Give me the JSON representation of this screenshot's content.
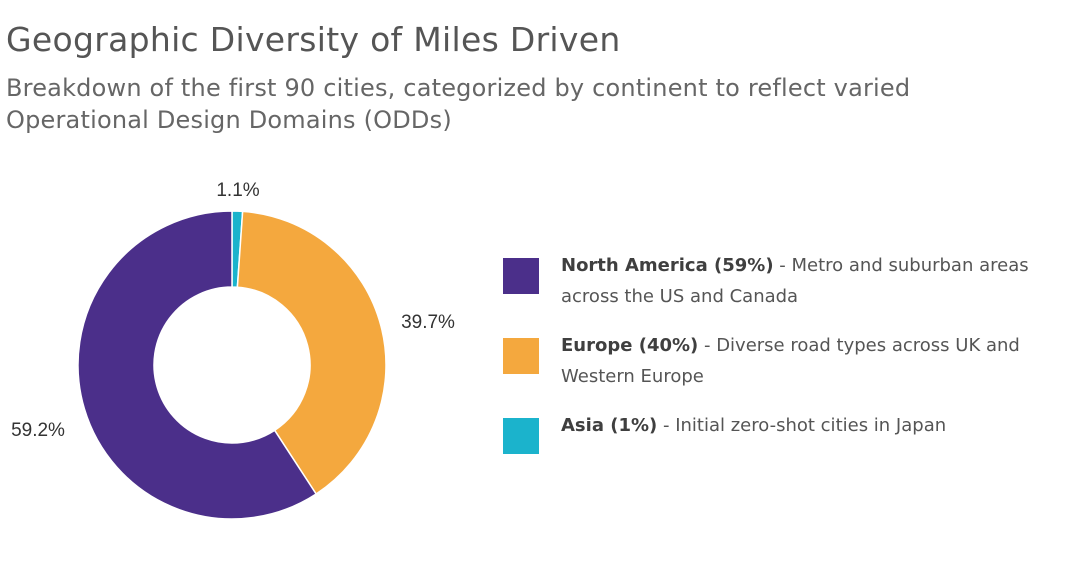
{
  "header": {
    "title": "Geographic Diversity of Miles Driven",
    "subtitle": "Breakdown of the first 90 cities, categorized by continent to reflect varied Operational Design Domains (ODDs)"
  },
  "chart_data": {
    "type": "pie",
    "variant": "donut",
    "title": "Geographic Diversity of Miles Driven",
    "subtitle": "Breakdown of the first 90 cities, categorized by continent to reflect varied Operational Design Domains (ODDs)",
    "start": "top, clockwise",
    "slices": [
      {
        "name": "Asia",
        "value": 1.1,
        "label": "1.1%",
        "color": "#1bb3cc"
      },
      {
        "name": "Europe",
        "value": 39.7,
        "label": "39.7%",
        "color": "#f4a83e"
      },
      {
        "name": "North America",
        "value": 59.2,
        "label": "59.2%",
        "color": "#4b2f8a"
      }
    ],
    "legend_position": "right",
    "legend": [
      {
        "label": "North America (59%)",
        "description": " - Metro and suburban areas across the US and Canada",
        "color": "#4b2f8a"
      },
      {
        "label": "Europe (40%)",
        "description": " - Diverse road types across UK and Western Europe",
        "color": "#f4a83e"
      },
      {
        "label": "Asia (1%)",
        "description": " - Initial zero-shot cities in Japan",
        "color": "#1bb3cc"
      }
    ]
  }
}
